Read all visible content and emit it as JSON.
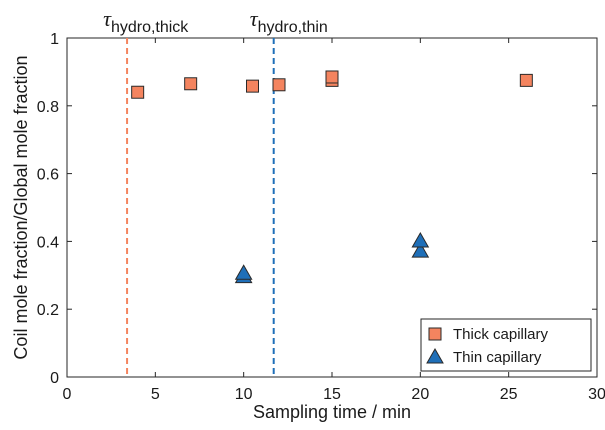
{
  "chart_data": {
    "type": "scatter",
    "title": "",
    "xlabel": "Sampling time / min",
    "ylabel": "Coil mole fraction/Global mole fraction",
    "xlim": [
      0,
      30
    ],
    "ylim": [
      0,
      1
    ],
    "xticks": [
      "0",
      "5",
      "10",
      "15",
      "20",
      "25",
      "30"
    ],
    "yticks": [
      "0",
      "0.2",
      "0.4",
      "0.6",
      "0.8",
      "1"
    ],
    "grid": false,
    "legend_position": "bottom-right",
    "series": [
      {
        "name": "Thick capillary",
        "marker": "square",
        "color": "#f4845f",
        "points": [
          {
            "x": 4,
            "y": 0.84
          },
          {
            "x": 7,
            "y": 0.865
          },
          {
            "x": 10.5,
            "y": 0.858
          },
          {
            "x": 12,
            "y": 0.862
          },
          {
            "x": 15,
            "y": 0.875
          },
          {
            "x": 15,
            "y": 0.885
          },
          {
            "x": 26,
            "y": 0.875
          }
        ]
      },
      {
        "name": "Thin capillary",
        "marker": "triangle",
        "color": "#1f6fb8",
        "points": [
          {
            "x": 10,
            "y": 0.295
          },
          {
            "x": 10,
            "y": 0.305
          },
          {
            "x": 20,
            "y": 0.37
          },
          {
            "x": 20,
            "y": 0.4
          }
        ]
      }
    ],
    "vlines": [
      {
        "x": 3.4,
        "color": "#f4845f",
        "label_main": "τ",
        "label_sub": "hydro,thick"
      },
      {
        "x": 11.7,
        "color": "#1f6fb8",
        "label_main": "τ",
        "label_sub": "hydro,thin"
      }
    ]
  }
}
